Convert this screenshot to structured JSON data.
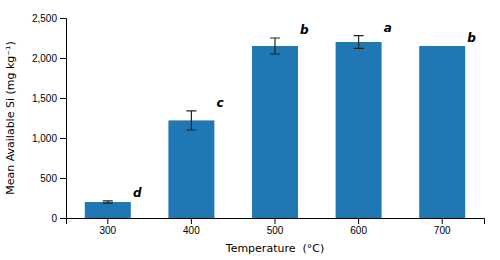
{
  "chart_data": {
    "type": "bar",
    "categories": [
      "300",
      "400",
      "500",
      "600",
      "700"
    ],
    "values": [
      200,
      1220,
      2150,
      2200,
      2150
    ],
    "errors": [
      15,
      120,
      100,
      80,
      0
    ],
    "annotations": [
      "d",
      "c",
      "b",
      "a",
      "b"
    ],
    "xlabel": "Temperature  (°C)",
    "ylabel": "Mean Available Si (mg kg⁻¹)",
    "ylim": [
      0,
      2500
    ],
    "yticks": [
      0,
      500,
      {
        "value": 1000,
        "label": "1,000"
      },
      {
        "value": 1500,
        "label": "1,500"
      },
      {
        "value": 2000,
        "label": "2,000"
      },
      {
        "value": 2500,
        "label": "2,500"
      }
    ],
    "grid": false
  }
}
